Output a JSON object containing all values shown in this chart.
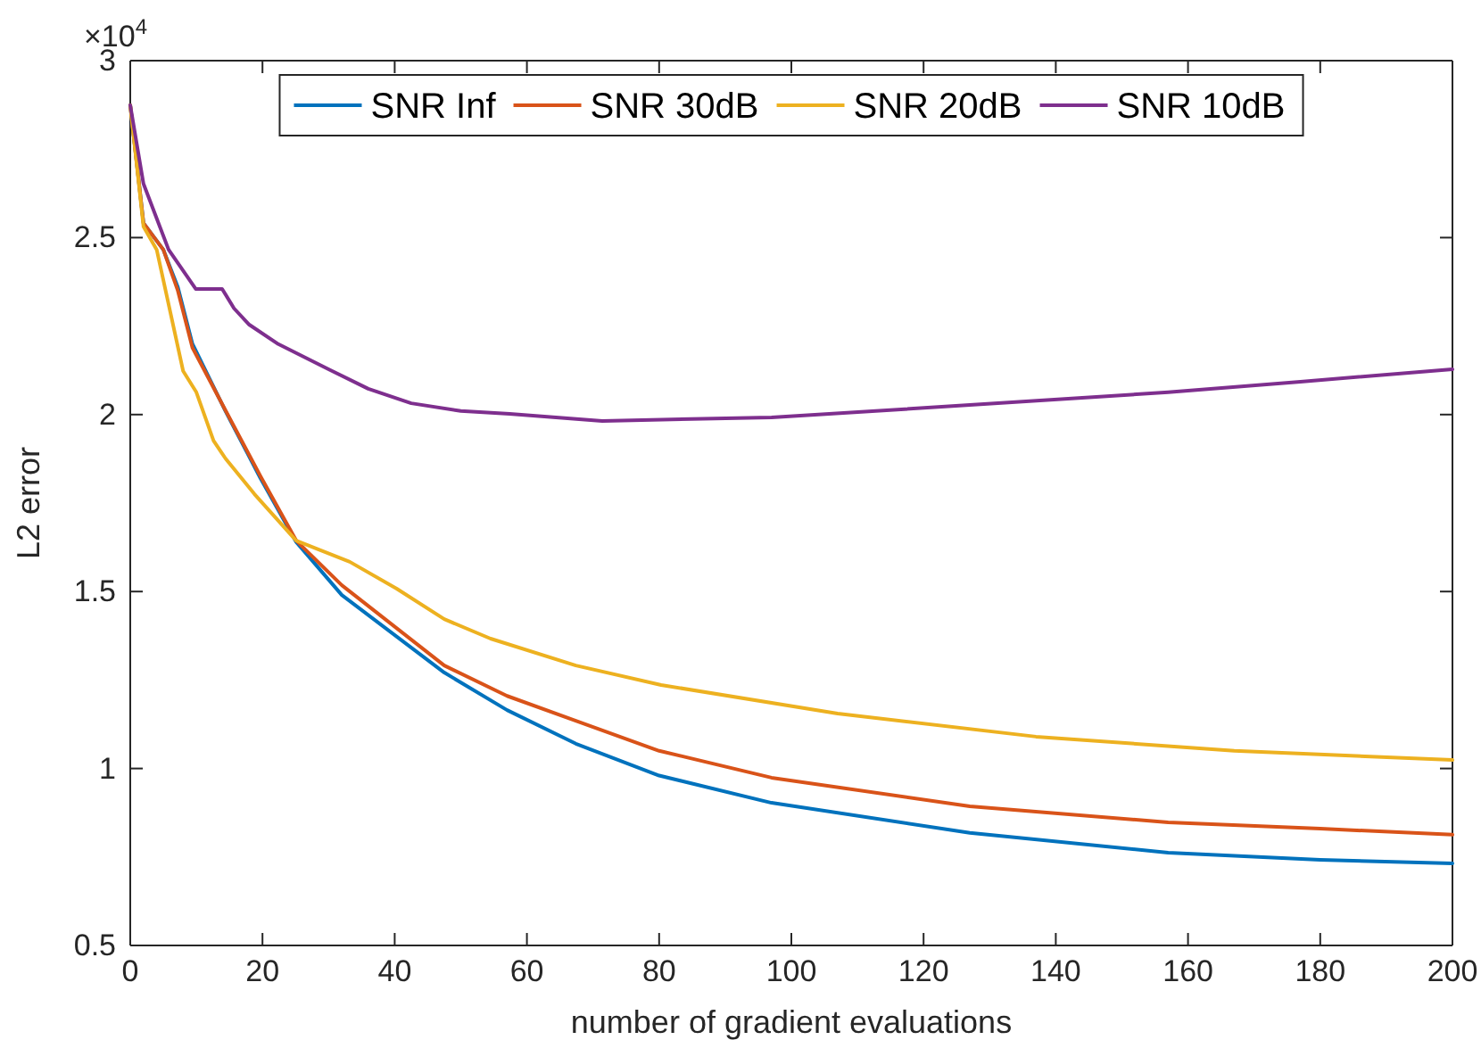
{
  "chart_data": {
    "type": "line",
    "xlabel": "number of gradient evaluations",
    "ylabel": "L2 error",
    "annotations": [
      "×10$^{4}$"
    ],
    "xlim": [
      0,
      200
    ],
    "xticks": [
      0,
      20,
      40,
      60,
      80,
      100,
      120,
      140,
      160,
      180,
      200
    ],
    "ylim": [
      0.5,
      3
    ],
    "yticks": [
      0.5,
      1,
      1.5,
      2,
      2.5,
      3
    ],
    "grid": false,
    "legend": "top",
    "marker": "none",
    "line_style": "solid",
    "series": [
      {
        "name": "SNR Inf",
        "color": "#0072bd",
        "x": [
          0,
          2,
          5,
          7.2,
          9.4,
          14.4,
          19.7,
          25.1,
          32,
          47.5,
          57,
          67.4,
          80,
          97,
          127,
          157,
          180,
          200
        ],
        "values": [
          2.874,
          2.541,
          2.466,
          2.36,
          2.2,
          2.01,
          1.82,
          1.64,
          1.49,
          1.271,
          1.165,
          1.07,
          0.98,
          0.903,
          0.818,
          0.762,
          0.742,
          0.732
        ]
      },
      {
        "name": "SNR 30dB",
        "color": "#d95319",
        "x": [
          0,
          2,
          5,
          7.2,
          9.4,
          14.4,
          19.7,
          25.1,
          32,
          47.5,
          57,
          67.4,
          80,
          97,
          127,
          157,
          180,
          200
        ],
        "values": [
          2.874,
          2.541,
          2.466,
          2.35,
          2.189,
          2.012,
          1.826,
          1.644,
          1.518,
          1.291,
          1.205,
          1.135,
          1.05,
          0.974,
          0.893,
          0.848,
          0.83,
          0.813
        ]
      },
      {
        "name": "SNR 20dB",
        "color": "#edb120",
        "x": [
          0,
          2,
          4,
          8,
          10,
          12.6,
          14.4,
          18.8,
          25.1,
          33.2,
          40.3,
          47.5,
          54.5,
          67.4,
          80.3,
          107,
          137,
          167,
          200
        ],
        "values": [
          2.874,
          2.531,
          2.466,
          2.123,
          2.063,
          1.926,
          1.876,
          1.775,
          1.644,
          1.584,
          1.508,
          1.422,
          1.367,
          1.291,
          1.236,
          1.155,
          1.09,
          1.05,
          1.024
        ]
      },
      {
        "name": "SNR 10dB",
        "color": "#7e2f8e",
        "x": [
          0,
          2,
          5.8,
          9.9,
          13.9,
          15.7,
          18,
          22.4,
          30,
          36,
          42.5,
          50,
          57.4,
          71.4,
          97,
          127,
          157,
          177,
          200
        ],
        "values": [
          2.874,
          2.652,
          2.466,
          2.355,
          2.355,
          2.3,
          2.254,
          2.199,
          2.128,
          2.073,
          2.032,
          2.01,
          2.002,
          1.982,
          1.992,
          2.027,
          2.063,
          2.093,
          2.128
        ]
      }
    ]
  }
}
